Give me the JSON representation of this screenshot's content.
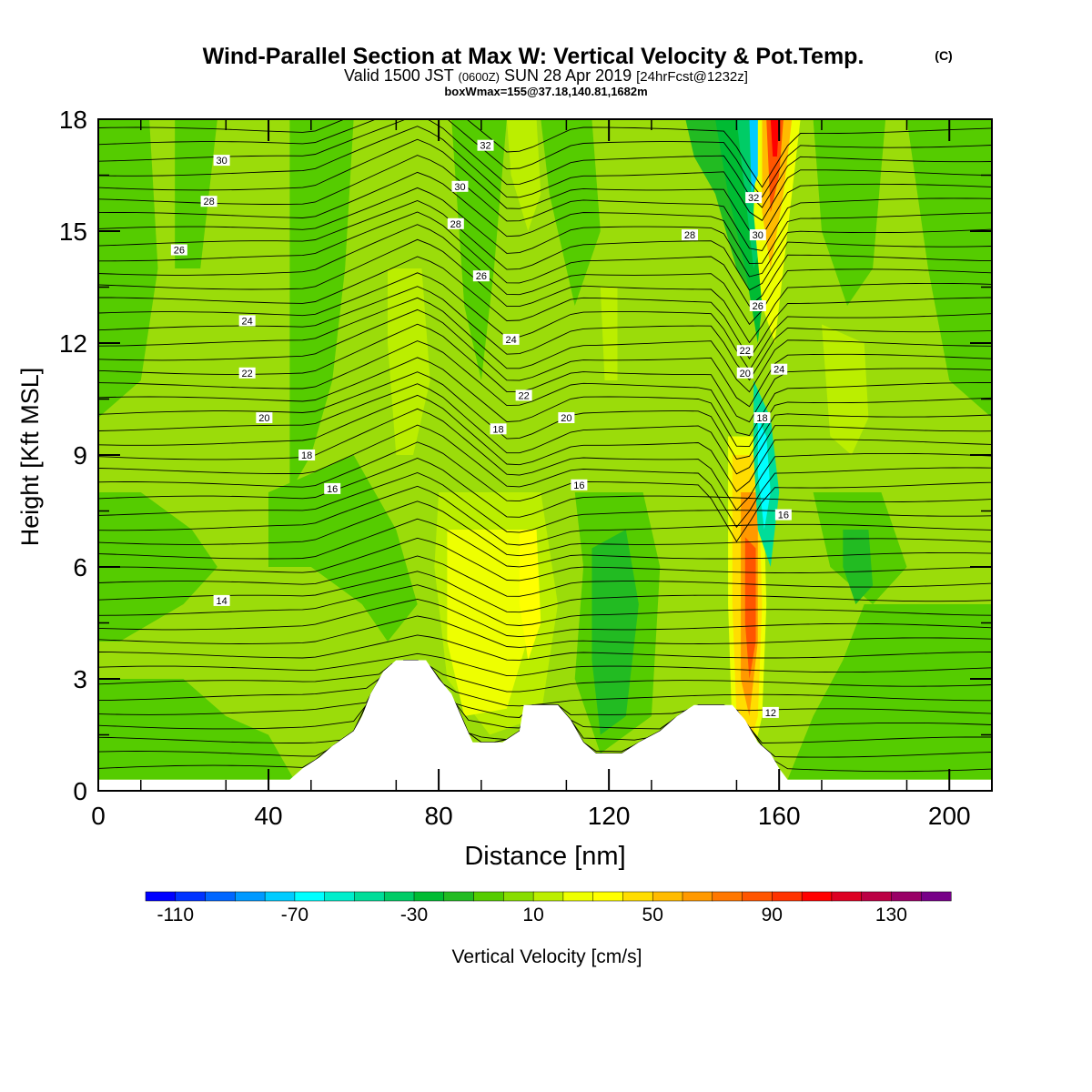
{
  "header": {
    "title": "Wind-Parallel Section at Max W: Vertical Velocity & Pot.Temp.",
    "copyright": "(C)",
    "valid_prefix": "Valid 1500 JST",
    "valid_utc": "(0600Z)",
    "valid_date": "SUN 28 Apr 2019",
    "forecast": "[24hrFcst@1232z]",
    "boxinfo": "boxWmax=155@37.18,140.81,1682m"
  },
  "chart_data": {
    "type": "heatmap",
    "xlabel": "Distance [nm]",
    "ylabel": "Height [Kft MSL]",
    "xlim": [
      0,
      210
    ],
    "ylim": [
      0,
      18
    ],
    "xticks": [
      0,
      40,
      80,
      120,
      160,
      200
    ],
    "yticks": [
      0,
      3,
      6,
      9,
      12,
      15,
      18
    ],
    "colorbar": {
      "label": "Vertical Velocity [cm/s]",
      "min": -120,
      "max": 150,
      "step": 10,
      "tick_labels": [
        -110,
        -70,
        -30,
        10,
        50,
        90,
        130
      ],
      "colors": [
        "#0000ff",
        "#0033ff",
        "#0066ff",
        "#0099ff",
        "#00ccff",
        "#00ffff",
        "#00eecc",
        "#00dd99",
        "#00cc66",
        "#00bb33",
        "#22bb22",
        "#55cc00",
        "#88dd00",
        "#bbee00",
        "#eeff00",
        "#ffff00",
        "#ffdd00",
        "#ffbb00",
        "#ff9900",
        "#ff7700",
        "#ff5500",
        "#ff3300",
        "#ff0000",
        "#dd0022",
        "#bb0044",
        "#990066",
        "#770088"
      ]
    },
    "terrain": [
      [
        0,
        0.3
      ],
      [
        45,
        0.3
      ],
      [
        48,
        0.6
      ],
      [
        52,
        0.9
      ],
      [
        55,
        1.2
      ],
      [
        60,
        1.6
      ],
      [
        62,
        2.0
      ],
      [
        64,
        2.6
      ],
      [
        67,
        3.2
      ],
      [
        70,
        3.5
      ],
      [
        77,
        3.5
      ],
      [
        80,
        3.0
      ],
      [
        83,
        2.6
      ],
      [
        86,
        1.8
      ],
      [
        88,
        1.3
      ],
      [
        95,
        1.3
      ],
      [
        99,
        1.6
      ],
      [
        100,
        2.3
      ],
      [
        108,
        2.3
      ],
      [
        111,
        1.9
      ],
      [
        114,
        1.3
      ],
      [
        117,
        1.0
      ],
      [
        123,
        1.0
      ],
      [
        127,
        1.3
      ],
      [
        132,
        1.6
      ],
      [
        136,
        2.0
      ],
      [
        140,
        2.3
      ],
      [
        149,
        2.3
      ],
      [
        152,
        1.9
      ],
      [
        155,
        1.3
      ],
      [
        158,
        1.0
      ],
      [
        160,
        0.6
      ],
      [
        162,
        0.3
      ],
      [
        210,
        0.3
      ]
    ],
    "theta_labels": [
      {
        "x": 29,
        "y": 16.9,
        "text": "30"
      },
      {
        "x": 26,
        "y": 15.8,
        "text": "28"
      },
      {
        "x": 19,
        "y": 14.5,
        "text": "26"
      },
      {
        "x": 35,
        "y": 12.6,
        "text": "24"
      },
      {
        "x": 35,
        "y": 11.2,
        "text": "22"
      },
      {
        "x": 39,
        "y": 10.0,
        "text": "20"
      },
      {
        "x": 49,
        "y": 9.0,
        "text": "18"
      },
      {
        "x": 55,
        "y": 8.1,
        "text": "16"
      },
      {
        "x": 29,
        "y": 5.1,
        "text": "14"
      },
      {
        "x": 91,
        "y": 17.3,
        "text": "32"
      },
      {
        "x": 85,
        "y": 16.2,
        "text": "30"
      },
      {
        "x": 84,
        "y": 15.2,
        "text": "28"
      },
      {
        "x": 90,
        "y": 13.8,
        "text": "26"
      },
      {
        "x": 97,
        "y": 12.1,
        "text": "24"
      },
      {
        "x": 100,
        "y": 10.6,
        "text": "22"
      },
      {
        "x": 94,
        "y": 9.7,
        "text": "18"
      },
      {
        "x": 110,
        "y": 10.0,
        "text": "20"
      },
      {
        "x": 113,
        "y": 8.2,
        "text": "16"
      },
      {
        "x": 139,
        "y": 14.9,
        "text": "28"
      },
      {
        "x": 154,
        "y": 15.9,
        "text": "32"
      },
      {
        "x": 155,
        "y": 14.9,
        "text": "30"
      },
      {
        "x": 155,
        "y": 13.0,
        "text": "26"
      },
      {
        "x": 152,
        "y": 11.8,
        "text": "22"
      },
      {
        "x": 152,
        "y": 11.2,
        "text": "20"
      },
      {
        "x": 160,
        "y": 11.3,
        "text": "24"
      },
      {
        "x": 156,
        "y": 10.0,
        "text": "18"
      },
      {
        "x": 161,
        "y": 7.4,
        "text": "16"
      },
      {
        "x": 158,
        "y": 2.1,
        "text": "12"
      }
    ]
  }
}
